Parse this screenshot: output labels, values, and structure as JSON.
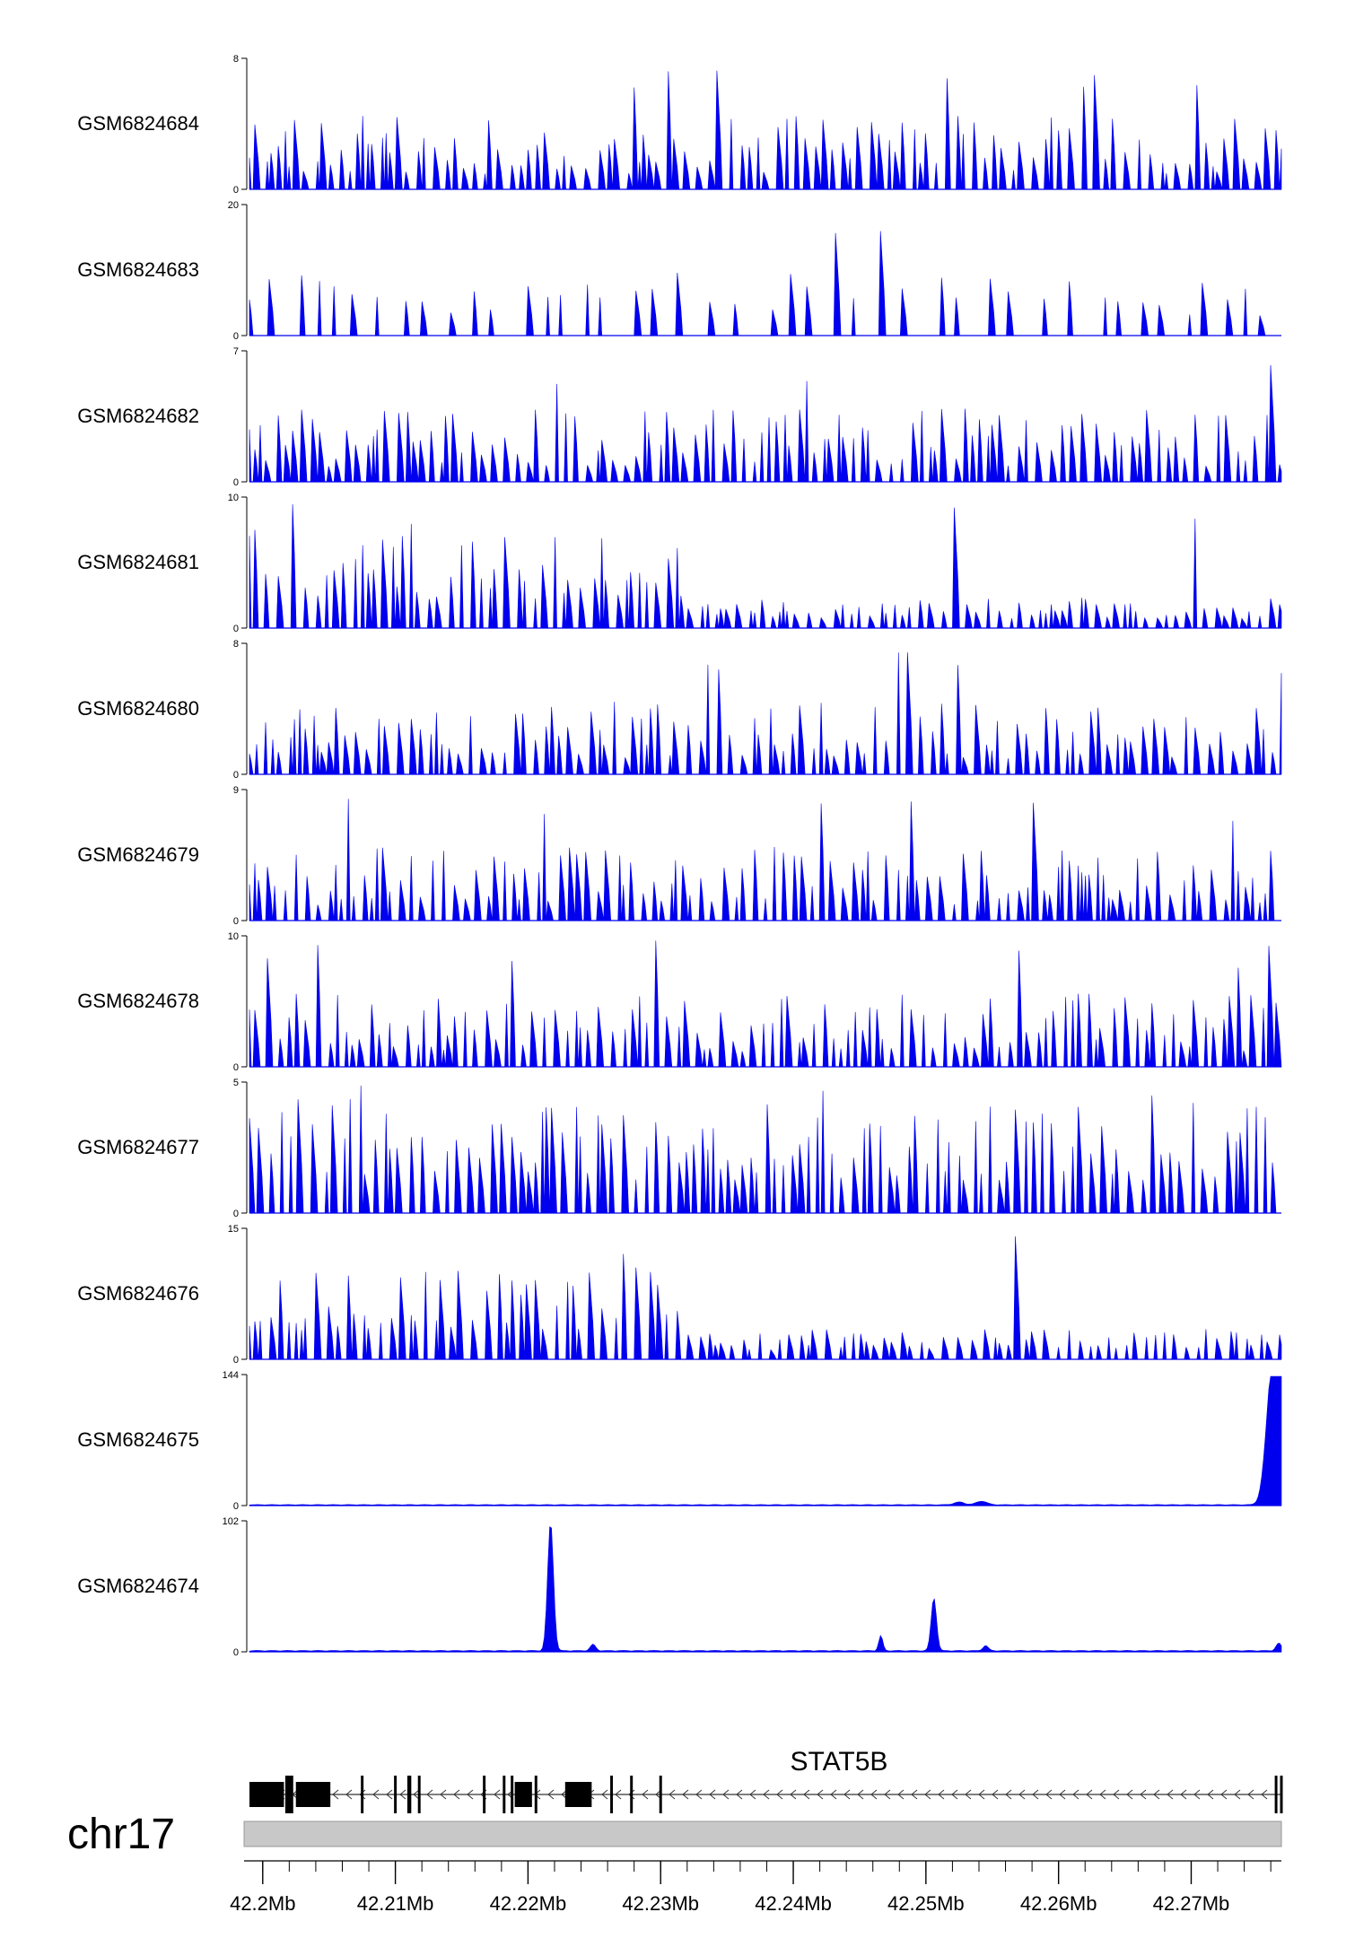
{
  "chart_data": {
    "type": "area",
    "region": {
      "chromosome": "chr17",
      "start": 42.199,
      "end": 42.2768,
      "unit": "Mb"
    },
    "fill_color": "#0000ee",
    "tracks": [
      {
        "name": "GSM6824684",
        "ymax": 8,
        "ymin": 0,
        "peak_fraction": 0.55,
        "kind": "spiky",
        "seed": 11
      },
      {
        "name": "GSM6824683",
        "ymax": 20,
        "ymin": 0,
        "peak_fraction": 0.3,
        "kind": "sparse",
        "seed": 23
      },
      {
        "name": "GSM6824682",
        "ymax": 7,
        "ymin": 0,
        "peak_fraction": 0.55,
        "kind": "spiky",
        "seed": 37
      },
      {
        "name": "GSM6824681",
        "ymax": 10,
        "ymin": 0,
        "peak_fraction": 0.6,
        "kind": "dense_left",
        "seed": 41
      },
      {
        "name": "GSM6824680",
        "ymax": 8,
        "ymin": 0,
        "peak_fraction": 0.5,
        "kind": "spiky",
        "seed": 53
      },
      {
        "name": "GSM6824679",
        "ymax": 9,
        "ymin": 0,
        "peak_fraction": 0.45,
        "kind": "spiky",
        "seed": 67
      },
      {
        "name": "GSM6824678",
        "ymax": 10,
        "ymin": 0,
        "peak_fraction": 0.45,
        "kind": "spiky",
        "seed": 71
      },
      {
        "name": "GSM6824677",
        "ymax": 5,
        "ymin": 0,
        "peak_fraction": 0.65,
        "kind": "dense",
        "seed": 83
      },
      {
        "name": "GSM6824676",
        "ymax": 15,
        "ymin": 0,
        "peak_fraction": 0.5,
        "kind": "dense_left",
        "seed": 97
      },
      {
        "name": "GSM6824675",
        "ymax": 144,
        "ymin": 0,
        "kind": "peaks",
        "peaks": [
          {
            "center": 42.2761,
            "height": 144,
            "width": 0.00045
          },
          {
            "center": 42.2766,
            "height": 128,
            "width": 0.0003
          },
          {
            "center": 42.2542,
            "height": 4,
            "width": 0.0004
          },
          {
            "center": 42.2525,
            "height": 3,
            "width": 0.0004
          }
        ]
      },
      {
        "name": "GSM6824674",
        "ymax": 102,
        "ymin": 0,
        "kind": "peaks",
        "peaks": [
          {
            "center": 42.2217,
            "height": 102,
            "width": 0.00022
          },
          {
            "center": 42.2506,
            "height": 42,
            "width": 0.0002
          },
          {
            "center": 42.2466,
            "height": 12,
            "width": 0.00015
          },
          {
            "center": 42.2249,
            "height": 5,
            "width": 0.0002
          },
          {
            "center": 42.2545,
            "height": 4,
            "width": 0.0002
          },
          {
            "center": 42.2766,
            "height": 6,
            "width": 0.0002
          }
        ]
      }
    ],
    "gene": {
      "name": "STAT5B",
      "strand": "-",
      "start": 42.199,
      "end": 42.2768,
      "exons": [
        [
          42.199,
          42.2016
        ],
        [
          42.2017,
          42.2023
        ],
        [
          42.2025,
          42.2051
        ],
        [
          42.2074,
          42.2076
        ],
        [
          42.2099,
          42.2101
        ],
        [
          42.2109,
          42.2112
        ],
        [
          42.2117,
          42.2119
        ],
        [
          42.2166,
          42.2168
        ],
        [
          42.2181,
          42.2183
        ],
        [
          42.2187,
          42.2189
        ],
        [
          42.219,
          42.2203
        ],
        [
          42.2205,
          42.2207
        ],
        [
          42.2228,
          42.2248
        ],
        [
          42.2262,
          42.2264
        ],
        [
          42.2277,
          42.2279
        ],
        [
          42.2299,
          42.2301
        ],
        [
          42.2763,
          42.2765
        ],
        [
          42.2767,
          42.2769
        ]
      ]
    },
    "axis": {
      "ticks": [
        42.2,
        42.21,
        42.22,
        42.23,
        42.24,
        42.25,
        42.26,
        42.27
      ],
      "tick_labels": [
        "42.2Mb",
        "42.21Mb",
        "42.22Mb",
        "42.23Mb",
        "42.24Mb",
        "42.25Mb",
        "42.26Mb",
        "42.27Mb"
      ],
      "minor_step": 0.002
    },
    "grid": false
  }
}
